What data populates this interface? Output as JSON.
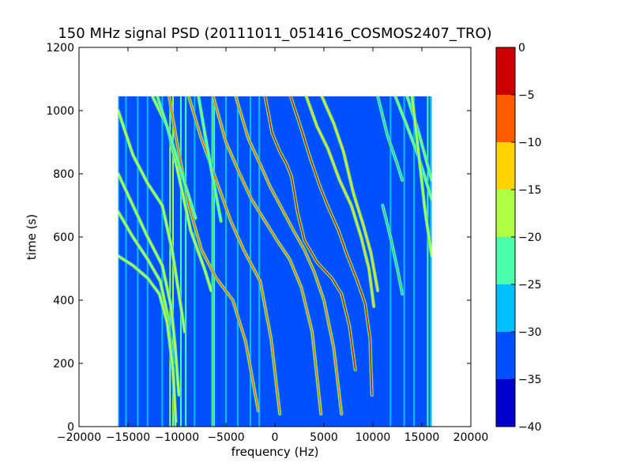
{
  "chart_data": {
    "type": "heatmap",
    "title": "150 MHz signal PSD (20111011_051416_COSMOS2407_TRO)",
    "xlabel": "frequency (Hz)",
    "ylabel": "time (s)",
    "xlim": [
      -20000,
      20000
    ],
    "ylim": [
      0,
      1200
    ],
    "xticks": [
      -20000,
      -15000,
      -10000,
      -5000,
      0,
      5000,
      10000,
      15000,
      20000
    ],
    "xtick_labels": [
      "−20000",
      "−15000",
      "−10000",
      "−5000",
      "0",
      "5000",
      "10000",
      "15000",
      "20000"
    ],
    "yticks": [
      0,
      200,
      400,
      600,
      800,
      1000,
      1200
    ],
    "ytick_labels": [
      "0",
      "200",
      "400",
      "600",
      "800",
      "1000",
      "1200"
    ],
    "data_extent": {
      "x": [
        -16000,
        16000
      ],
      "y": [
        0,
        1045
      ]
    },
    "colormap": "jet",
    "background_level": -33,
    "colorbar": {
      "ticks": [
        0,
        -5,
        -10,
        -15,
        -20,
        -25,
        -30,
        -35,
        -40
      ],
      "tick_labels": [
        "0",
        "−5",
        "−10",
        "−15",
        "−20",
        "−25",
        "−30",
        "−35",
        "−40"
      ],
      "levels": [
        {
          "from": -40,
          "to": -35,
          "color": "#0000cd"
        },
        {
          "from": -35,
          "to": -30,
          "color": "#0050ff"
        },
        {
          "from": -30,
          "to": -25,
          "color": "#00c0ff"
        },
        {
          "from": -25,
          "to": -20,
          "color": "#4cffac"
        },
        {
          "from": -20,
          "to": -15,
          "color": "#b0ff46"
        },
        {
          "from": -15,
          "to": -10,
          "color": "#ffd200"
        },
        {
          "from": -10,
          "to": -5,
          "color": "#ff5a00"
        },
        {
          "from": -5,
          "to": 0,
          "color": "#cc0000"
        }
      ]
    },
    "vertical_lines": [
      {
        "x": -16000,
        "level": -27
      },
      {
        "x": -15200,
        "level": -28
      },
      {
        "x": -14000,
        "level": -29
      },
      {
        "x": -13000,
        "level": -29
      },
      {
        "x": -11500,
        "level": -28
      },
      {
        "x": -10700,
        "level": -20
      },
      {
        "x": -10400,
        "level": -18
      },
      {
        "x": -9600,
        "level": -25
      },
      {
        "x": -9100,
        "level": -22
      },
      {
        "x": -8200,
        "level": -27
      },
      {
        "x": -6400,
        "level": -22
      },
      {
        "x": -6200,
        "level": -24
      },
      {
        "x": -5000,
        "level": -28
      },
      {
        "x": -3800,
        "level": -28
      },
      {
        "x": -2500,
        "level": -27
      },
      {
        "x": -1600,
        "level": -28
      },
      {
        "x": 11800,
        "level": -28
      },
      {
        "x": 13200,
        "level": -27
      },
      {
        "x": 14200,
        "level": -28
      },
      {
        "x": 15600,
        "level": -25
      },
      {
        "x": 15900,
        "level": -27
      }
    ],
    "traces": [
      {
        "level": -10,
        "points": [
          [
            -10800,
            1045
          ],
          [
            -10000,
            900
          ],
          [
            -8800,
            700
          ],
          [
            -7500,
            560
          ],
          [
            -6000,
            470
          ],
          [
            -4300,
            400
          ],
          [
            -3000,
            270
          ],
          [
            -1700,
            50
          ]
        ]
      },
      {
        "level": -10,
        "points": [
          [
            -8800,
            1045
          ],
          [
            -7600,
            920
          ],
          [
            -6000,
            780
          ],
          [
            -4500,
            650
          ],
          [
            -3200,
            560
          ],
          [
            -1500,
            460
          ],
          [
            -400,
            280
          ],
          [
            500,
            40
          ]
        ]
      },
      {
        "level": -8,
        "points": [
          [
            -6300,
            1045
          ],
          [
            -5000,
            900
          ],
          [
            -3600,
            800
          ],
          [
            -2400,
            720
          ],
          [
            -1000,
            650
          ],
          [
            200,
            590
          ],
          [
            1500,
            530
          ],
          [
            2700,
            440
          ],
          [
            3800,
            300
          ],
          [
            4700,
            40
          ]
        ]
      },
      {
        "level": -10,
        "points": [
          [
            -4000,
            1045
          ],
          [
            -2700,
            910
          ],
          [
            -1500,
            830
          ],
          [
            -500,
            760
          ],
          [
            700,
            690
          ],
          [
            1900,
            620
          ],
          [
            3000,
            560
          ],
          [
            4000,
            490
          ],
          [
            5000,
            400
          ],
          [
            6000,
            250
          ],
          [
            6800,
            40
          ]
        ]
      },
      {
        "level": -3,
        "points": [
          [
            -1000,
            1045
          ],
          [
            -300,
            930
          ],
          [
            500,
            870
          ],
          [
            1200,
            830
          ],
          [
            1700,
            790
          ],
          [
            2300,
            680
          ],
          [
            3000,
            590
          ],
          [
            4300,
            520
          ],
          [
            5800,
            470
          ],
          [
            6800,
            420
          ],
          [
            7600,
            320
          ],
          [
            8200,
            180
          ]
        ]
      },
      {
        "level": -5,
        "points": [
          [
            1600,
            1045
          ],
          [
            2500,
            960
          ],
          [
            3600,
            850
          ],
          [
            4600,
            760
          ],
          [
            5500,
            690
          ],
          [
            6500,
            620
          ],
          [
            7400,
            540
          ],
          [
            8300,
            470
          ],
          [
            9200,
            390
          ],
          [
            9700,
            280
          ],
          [
            9900,
            100
          ]
        ]
      },
      {
        "level": -12,
        "points": [
          [
            3200,
            1045
          ],
          [
            4300,
            950
          ],
          [
            5400,
            880
          ],
          [
            6600,
            780
          ],
          [
            7800,
            700
          ],
          [
            8800,
            600
          ],
          [
            9600,
            500
          ],
          [
            10100,
            380
          ]
        ]
      },
      {
        "level": -12,
        "points": [
          [
            4800,
            1045
          ],
          [
            6000,
            960
          ],
          [
            7000,
            870
          ],
          [
            8000,
            740
          ],
          [
            9000,
            640
          ],
          [
            9800,
            550
          ],
          [
            10500,
            430
          ]
        ]
      },
      {
        "level": -20,
        "points": [
          [
            -16000,
            1000
          ],
          [
            -14500,
            860
          ],
          [
            -13000,
            770
          ],
          [
            -11500,
            700
          ],
          [
            -10500,
            560
          ],
          [
            -9800,
            420
          ],
          [
            -9200,
            300
          ]
        ]
      },
      {
        "level": -20,
        "points": [
          [
            -16000,
            800
          ],
          [
            -14500,
            700
          ],
          [
            -13000,
            600
          ],
          [
            -11500,
            510
          ],
          [
            -10600,
            380
          ],
          [
            -10200,
            260
          ],
          [
            -9800,
            100
          ]
        ]
      },
      {
        "level": -20,
        "points": [
          [
            -16000,
            680
          ],
          [
            -14500,
            600
          ],
          [
            -13000,
            530
          ],
          [
            -11700,
            460
          ],
          [
            -11000,
            360
          ],
          [
            -10400,
            200
          ]
        ]
      },
      {
        "level": -18,
        "points": [
          [
            -16000,
            540
          ],
          [
            -14500,
            510
          ],
          [
            -13000,
            470
          ],
          [
            -11800,
            420
          ],
          [
            -11000,
            330
          ],
          [
            -10400,
            180
          ],
          [
            -10100,
            0
          ]
        ]
      },
      {
        "level": -18,
        "points": [
          [
            -12500,
            1045
          ],
          [
            -11000,
            950
          ],
          [
            -10000,
            820
          ],
          [
            -8600,
            620
          ],
          [
            -7200,
            500
          ],
          [
            -6500,
            430
          ]
        ]
      },
      {
        "level": -22,
        "points": [
          [
            -12000,
            1045
          ],
          [
            -10500,
            900
          ],
          [
            -9300,
            780
          ],
          [
            -8100,
            660
          ]
        ]
      },
      {
        "level": -24,
        "points": [
          [
            -7800,
            1045
          ],
          [
            -7000,
            900
          ],
          [
            -6300,
            780
          ],
          [
            -5500,
            650
          ]
        ]
      },
      {
        "level": -24,
        "points": [
          [
            12300,
            1045
          ],
          [
            13500,
            950
          ],
          [
            14600,
            860
          ],
          [
            15400,
            780
          ],
          [
            16000,
            720
          ]
        ]
      },
      {
        "level": -22,
        "points": [
          [
            13500,
            1045
          ],
          [
            14500,
            950
          ],
          [
            15300,
            860
          ],
          [
            16000,
            780
          ]
        ]
      },
      {
        "level": -20,
        "points": [
          [
            14000,
            1045
          ],
          [
            14800,
            830
          ],
          [
            15300,
            690
          ],
          [
            16000,
            540
          ]
        ]
      },
      {
        "level": -26,
        "points": [
          [
            10500,
            1045
          ],
          [
            11500,
            920
          ],
          [
            12500,
            830
          ],
          [
            13000,
            780
          ]
        ]
      },
      {
        "level": -26,
        "points": [
          [
            11000,
            700
          ],
          [
            11800,
            600
          ],
          [
            12500,
            500
          ],
          [
            13000,
            420
          ]
        ]
      }
    ]
  }
}
